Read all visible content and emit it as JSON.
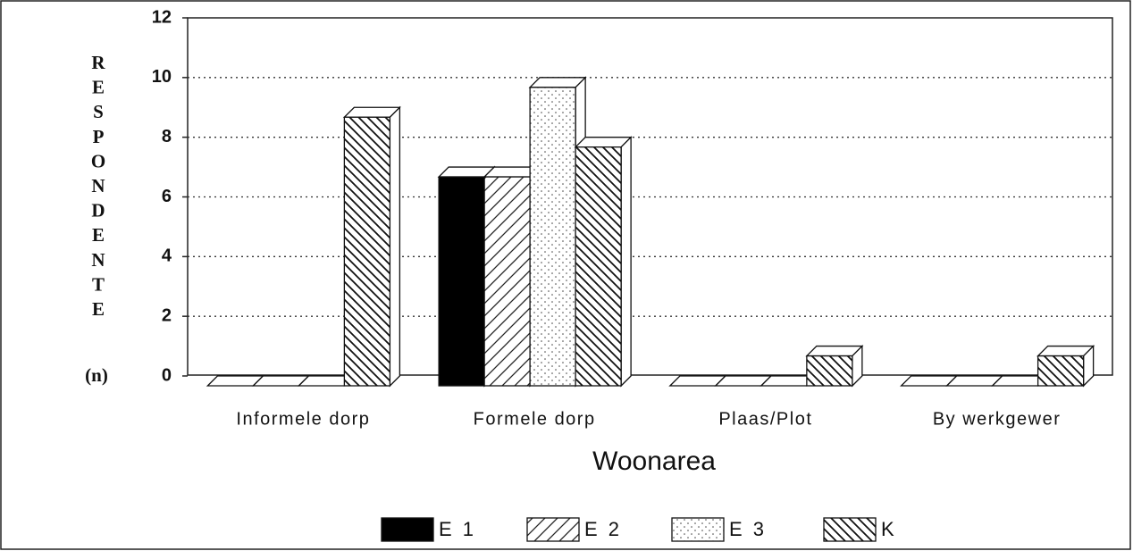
{
  "chart_data": {
    "type": "bar3d",
    "ylabel": "RESPONDENTE",
    "ylabel_unit": "(n)",
    "xlabel": "Woonarea",
    "categories": [
      "Informele dorp",
      "Formele dorp",
      "Plaas/Plot",
      "By werkgewer"
    ],
    "series": [
      {
        "name": "E 1",
        "color": "#000000",
        "pattern": "solid",
        "values": [
          0,
          7,
          0,
          0
        ]
      },
      {
        "name": "E 2",
        "color": "#ffffff",
        "pattern": "diagonal-right",
        "values": [
          0,
          7,
          0,
          0
        ]
      },
      {
        "name": "E 3",
        "color": "#ffffff",
        "pattern": "dots",
        "values": [
          0,
          10,
          0,
          0
        ]
      },
      {
        "name": "K",
        "color": "#ffffff",
        "pattern": "diagonal-left",
        "values": [
          9,
          8,
          1,
          1
        ]
      }
    ],
    "ylim": [
      0,
      12
    ],
    "yticks": [
      0,
      2,
      4,
      6,
      8,
      10,
      12
    ],
    "grid": true,
    "legend": "bottom"
  }
}
